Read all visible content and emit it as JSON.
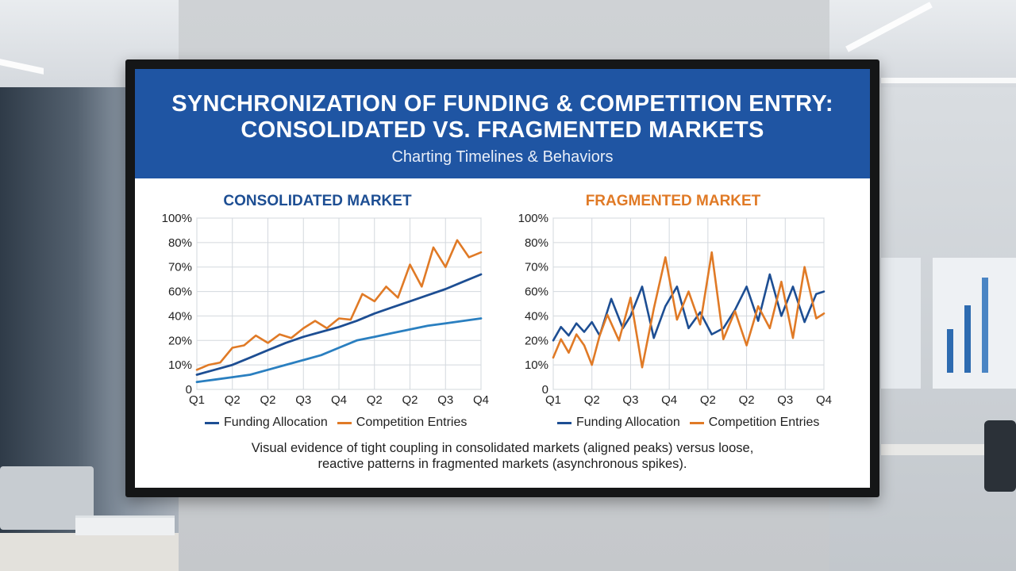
{
  "header": {
    "title_line1": "SYNCHRONIZATION OF FUNDING & COMPETITION ENTRY:",
    "title_line2": "CONSOLIDATED VS. FRAGMENTED MARKETS",
    "subtitle": "Charting Timelines & Behaviors"
  },
  "caption": {
    "line1": "Visual evidence of tight coupling in consolidated markets (aligned peaks) versus loose,",
    "line2": "reactive patterns in fragmented markets (asynchronous spikes)."
  },
  "colors": {
    "funding": "#1d4e93",
    "funding_light": "#2a7fc0",
    "competition": "#e07a26",
    "banner": "#1f55a3"
  },
  "chart_data": [
    {
      "type": "line",
      "title": "CONSOLIDATED MARKET",
      "yticks": [
        "0",
        "10%",
        "20%",
        "40%",
        "60%",
        "70%",
        "80%",
        "100%"
      ],
      "xticks": [
        "Q1",
        "Q2",
        "Q2",
        "Q3",
        "Q4",
        "Q2",
        "Q2",
        "Q3",
        "Q4"
      ],
      "ylim": [
        0,
        100
      ],
      "grid": true,
      "legend": [
        "Funding Allocation",
        "Competition Entries"
      ],
      "legend_position": "bottom",
      "x": [
        0,
        0.5,
        1,
        1.5,
        2,
        2.5,
        3,
        3.5,
        4,
        4.5,
        5,
        5.5,
        6,
        6.5,
        7,
        7.5,
        8
      ],
      "series": [
        {
          "name": "Funding Allocation",
          "values": [
            6,
            8,
            10,
            13,
            16,
            19,
            23,
            27,
            31,
            36,
            42,
            47,
            52,
            57,
            61,
            64,
            67
          ]
        },
        {
          "name": "",
          "values": [
            3,
            4,
            5,
            6,
            8,
            10,
            12,
            14,
            17,
            20,
            23,
            26,
            29,
            32,
            34,
            36,
            38
          ]
        },
        {
          "name": "Competition Entries",
          "values": [
            8,
            10,
            11,
            17,
            18,
            24,
            19,
            25,
            22,
            30,
            36,
            30,
            38,
            37,
            58,
            52,
            62,
            55,
            71,
            62,
            78,
            70,
            82,
            74,
            76
          ],
          "x": [
            0,
            0.33,
            0.66,
            1,
            1.33,
            1.66,
            2,
            2.33,
            2.66,
            3,
            3.33,
            3.66,
            4,
            4.33,
            4.66,
            5,
            5.33,
            5.66,
            6,
            6.33,
            6.66,
            7,
            7.33,
            7.66,
            8
          ]
        }
      ]
    },
    {
      "type": "line",
      "title": "FRAGMENTED MARKET",
      "yticks": [
        "0",
        "10%",
        "20%",
        "40%",
        "60%",
        "70%",
        "80%",
        "100%"
      ],
      "xticks": [
        "Q1",
        "Q2",
        "Q3",
        "Q4",
        "Q2",
        "Q2",
        "Q3",
        "Q4"
      ],
      "ylim": [
        0,
        100
      ],
      "grid": true,
      "legend": [
        "Funding Allocation",
        "Competition Entries"
      ],
      "legend_position": "bottom",
      "series": [
        {
          "name": "Funding Allocation",
          "x": [
            0,
            0.2,
            0.4,
            0.6,
            0.8,
            1.0,
            1.2,
            1.5,
            1.8,
            2.0,
            2.3,
            2.6,
            2.9,
            3.2,
            3.5,
            3.8,
            4.1,
            4.4,
            4.7,
            5.0,
            5.3,
            5.6,
            5.9,
            6.2,
            6.5,
            6.8,
            7.0
          ],
          "values": [
            20,
            31,
            24,
            34,
            27,
            35,
            24,
            54,
            30,
            40,
            62,
            22,
            48,
            62,
            30,
            43,
            25,
            30,
            45,
            62,
            36,
            67,
            40,
            62,
            35,
            58,
            60
          ]
        },
        {
          "name": "Competition Entries",
          "x": [
            0,
            0.2,
            0.4,
            0.6,
            0.8,
            1.0,
            1.2,
            1.4,
            1.7,
            2.0,
            2.3,
            2.6,
            2.9,
            3.2,
            3.5,
            3.8,
            4.1,
            4.4,
            4.7,
            5.0,
            5.3,
            5.6,
            5.9,
            6.2,
            6.5,
            6.8,
            7.0
          ],
          "values": [
            13,
            21,
            15,
            25,
            18,
            10,
            24,
            41,
            20,
            55,
            9,
            46,
            74,
            37,
            60,
            33,
            76,
            21,
            44,
            18,
            48,
            30,
            64,
            22,
            70,
            38,
            42
          ]
        }
      ]
    }
  ]
}
